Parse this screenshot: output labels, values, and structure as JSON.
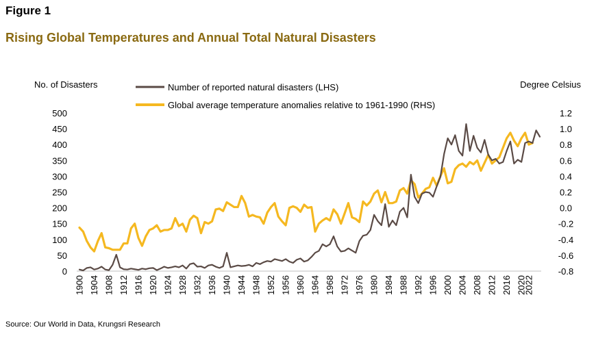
{
  "figure_label": "Figure 1",
  "title": "Rising Global Temperatures and Annual Total Natural Disasters",
  "source": "Source: Our World in Data, Krungsri Research",
  "colors": {
    "title": "#8a6a12",
    "disasters": "#5a4a45",
    "temperature": "#f5b820"
  },
  "chart_data": {
    "type": "line",
    "ylabel_left": "No. of Disasters",
    "ylabel_right": "Degree Celsius",
    "ylim_left": [
      0,
      500
    ],
    "ylim_right": [
      -0.8,
      1.2
    ],
    "yticks_left": [
      "0",
      "50",
      "100",
      "150",
      "200",
      "250",
      "300",
      "350",
      "400",
      "450",
      "500"
    ],
    "yticks_right": [
      "-0.8",
      "-0.6",
      "-0.4",
      "-0.2",
      "0.0",
      "0.2",
      "0.4",
      "0.6",
      "0.8",
      "1.0",
      "1.2"
    ],
    "xticks": [
      "1900",
      "1904",
      "1908",
      "1912",
      "1916",
      "1920",
      "1924",
      "1928",
      "1932",
      "1936",
      "1940",
      "1944",
      "1948",
      "1952",
      "1956",
      "1960",
      "1964",
      "1968",
      "1972",
      "1976",
      "1980",
      "1984",
      "1988",
      "1992",
      "1996",
      "2000",
      "2004",
      "2008",
      "2012",
      "2016",
      "2020",
      "2022"
    ],
    "x_start": 1900,
    "series": [
      {
        "name": "Number of reported natural disasters (LHS)",
        "axis": "left",
        "values": [
          5,
          2,
          10,
          12,
          5,
          8,
          14,
          5,
          3,
          20,
          52,
          12,
          6,
          5,
          8,
          6,
          4,
          8,
          6,
          9,
          10,
          3,
          8,
          14,
          10,
          12,
          15,
          12,
          18,
          8,
          22,
          25,
          14,
          15,
          10,
          18,
          20,
          14,
          10,
          15,
          58,
          12,
          15,
          18,
          16,
          17,
          20,
          15,
          26,
          22,
          28,
          32,
          30,
          38,
          35,
          32,
          38,
          30,
          26,
          36,
          40,
          30,
          34,
          45,
          58,
          64,
          85,
          78,
          85,
          110,
          78,
          62,
          64,
          72,
          65,
          58,
          95,
          112,
          115,
          130,
          178,
          158,
          145,
          212,
          140,
          160,
          145,
          188,
          200,
          170,
          305,
          235,
          215,
          245,
          250,
          248,
          235,
          268,
          298,
          370,
          420,
          400,
          430,
          380,
          365,
          465,
          380,
          428,
          390,
          375,
          415,
          368,
          350,
          355,
          340,
          345,
          380,
          410,
          340,
          352,
          345,
          405,
          410,
          405,
          445,
          425
        ]
      },
      {
        "name": "Global average temperature anomalies relative to 1961-1990 (RHS)",
        "axis": "right",
        "values": [
          -0.25,
          -0.3,
          -0.42,
          -0.5,
          -0.55,
          -0.42,
          -0.32,
          -0.5,
          -0.51,
          -0.53,
          -0.53,
          -0.53,
          -0.45,
          -0.45,
          -0.26,
          -0.2,
          -0.38,
          -0.48,
          -0.36,
          -0.28,
          -0.26,
          -0.22,
          -0.3,
          -0.28,
          -0.28,
          -0.26,
          -0.13,
          -0.23,
          -0.2,
          -0.3,
          -0.15,
          -0.1,
          -0.13,
          -0.32,
          -0.18,
          -0.2,
          -0.17,
          -0.02,
          -0.01,
          -0.04,
          0.07,
          0.04,
          0.01,
          0.01,
          0.15,
          0.06,
          -0.11,
          -0.09,
          -0.11,
          -0.12,
          -0.2,
          -0.06,
          0.01,
          0.06,
          -0.11,
          -0.17,
          -0.22,
          0.0,
          0.02,
          0.0,
          -0.05,
          0.04,
          0.0,
          0.01,
          -0.3,
          -0.2,
          -0.16,
          -0.13,
          -0.16,
          -0.02,
          -0.08,
          -0.2,
          -0.07,
          0.06,
          -0.12,
          -0.14,
          -0.18,
          0.08,
          0.03,
          0.08,
          0.18,
          0.22,
          0.07,
          0.2,
          0.06,
          0.06,
          0.08,
          0.22,
          0.25,
          0.18,
          0.35,
          0.3,
          0.13,
          0.18,
          0.24,
          0.26,
          0.38,
          0.28,
          0.4,
          0.5,
          0.31,
          0.33,
          0.49,
          0.54,
          0.56,
          0.52,
          0.58,
          0.55,
          0.6,
          0.47,
          0.57,
          0.67,
          0.56,
          0.6,
          0.64,
          0.76,
          0.88,
          0.95,
          0.85,
          0.78,
          0.88,
          0.95,
          0.8,
          0.82
        ]
      }
    ]
  }
}
